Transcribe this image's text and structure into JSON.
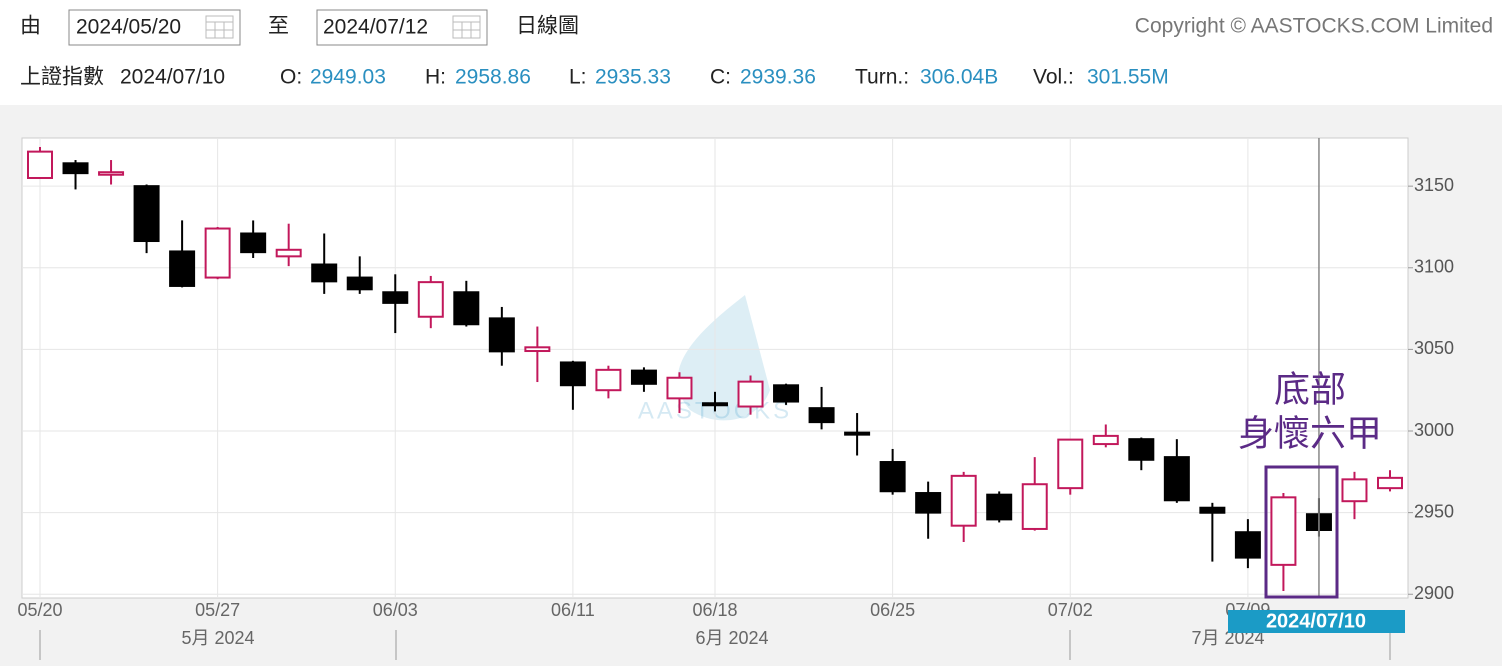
{
  "toolbar": {
    "from_label": "由",
    "from_date": "2024/05/20",
    "to_label": "至",
    "to_date": "2024/07/12",
    "chart_type": "日線圖",
    "copyright": "Copyright © AASTOCKS.COM Limited"
  },
  "quote": {
    "name": "上證指數",
    "date": "2024/07/10",
    "open_label": "O:",
    "high_label": "H:",
    "low_label": "L:",
    "close_label": "C:",
    "turnover_label": "Turn.:",
    "turnover": "306.04B",
    "volume_label": "Vol.:",
    "volume": "301.55M"
  },
  "chart_data": {
    "type": "candlestick",
    "categories": [
      "05/20",
      null,
      null,
      null,
      null,
      "05/27",
      null,
      null,
      null,
      null,
      "06/03",
      null,
      null,
      null,
      null,
      "06/11",
      null,
      null,
      null,
      "06/18",
      null,
      null,
      null,
      null,
      "06/25",
      null,
      null,
      null,
      null,
      "07/02",
      null,
      null,
      null,
      null,
      "07/09",
      null,
      null,
      null,
      null
    ],
    "open": [
      3155,
      3164,
      3157,
      3150,
      3110,
      3094,
      3121,
      3107,
      3102,
      3094,
      3085,
      3070,
      3085,
      3069,
      3049,
      3042,
      3025,
      3037,
      3020,
      3017,
      3015,
      3028,
      3014,
      2999,
      2981,
      2962,
      2942,
      2961,
      2940,
      2965,
      2992,
      2995,
      2984,
      2953,
      2938,
      2918,
      2949.03,
      2957,
      2965
    ],
    "high": [
      3174,
      3166,
      3166,
      3151,
      3129,
      3125,
      3129,
      3127,
      3121,
      3107,
      3096,
      3095,
      3092,
      3076,
      3064,
      3043,
      3040,
      3039,
      3036,
      3024,
      3034,
      3029,
      3027,
      3011,
      2989,
      2969,
      2975,
      2963,
      2984,
      2995,
      3004,
      2996,
      2995,
      2956,
      2946,
      2962,
      2958.86,
      2975,
      2976
    ],
    "low": [
      3155,
      3148,
      3151,
      3109,
      3088,
      3093,
      3106,
      3101,
      3084,
      3084,
      3060,
      3063,
      3064,
      3040,
      3030,
      3013,
      3020,
      3024,
      3011,
      3012,
      3010,
      3016,
      3001,
      2985,
      2961,
      2934,
      2932,
      2944,
      2939,
      2961,
      2990,
      2976,
      2956,
      2920,
      2916,
      2902,
      2935.33,
      2946,
      2963
    ],
    "close": [
      3171.15,
      3157.97,
      3158.54,
      3116.39,
      3088.87,
      3124.04,
      3109.57,
      3111.02,
      3091.68,
      3086.81,
      3078.49,
      3091.2,
      3065.4,
      3048.79,
      3051.28,
      3028.05,
      3037.47,
      3028.92,
      3032.63,
      3015.89,
      3030.25,
      3018.05,
      3005.44,
      2998.14,
      2963.1,
      2950,
      2972.53,
      2945.85,
      2967.4,
      2994.73,
      2997.01,
      2982.38,
      2957.57,
      2949.93,
      2922.45,
      2959.37,
      2939.36,
      2970.39,
      2971.3
    ],
    "up_color": "#c2185b",
    "down_color": "#000000",
    "ylim": [
      2897.7,
      3179.5
    ],
    "yticks": [
      2900,
      2950,
      3000,
      3050,
      3100,
      3150
    ],
    "grid": true,
    "month_labels": [
      "5月 2024",
      "6月 2024",
      "7月 2024"
    ],
    "crosshair_label": "2024/07/10",
    "annotations": [
      "底部",
      "身懷六甲"
    ],
    "watermark": "AASTOCKS"
  }
}
